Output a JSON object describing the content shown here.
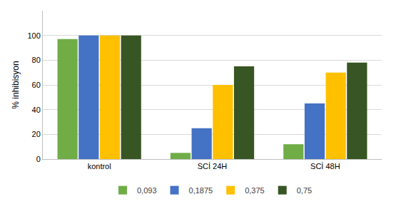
{
  "chart_data": {
    "type": "bar",
    "y_label": "% inhibisyon",
    "categories": [
      "kontrol",
      "SCİ 24H",
      "SCİ 48H"
    ],
    "series": [
      {
        "name": "0,093",
        "color": "#70AD47",
        "values": [
          97,
          5,
          12
        ]
      },
      {
        "name": "0,1875",
        "color": "#4472C4",
        "values": [
          100,
          25,
          45
        ]
      },
      {
        "name": "0,375",
        "color": "#FFC000",
        "values": [
          100,
          60,
          70
        ]
      },
      {
        "name": "0,75",
        "color": "#375623",
        "values": [
          100,
          75,
          78
        ]
      }
    ],
    "ylim": [
      0,
      120
    ],
    "yticks": [
      0,
      20,
      40,
      60,
      80,
      100
    ],
    "grid": true,
    "legend": "bottom"
  }
}
